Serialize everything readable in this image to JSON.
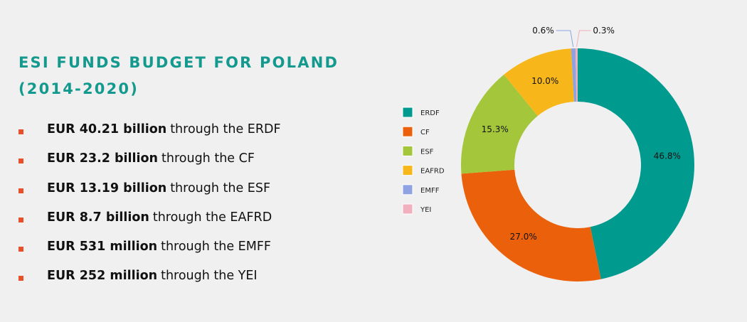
{
  "title_line1": "ESI FUNDS BUDGET FOR POLAND",
  "title_line2": "(2014-2020)",
  "items": [
    {
      "amount": "EUR 40.21 billion",
      "rest": "through the ERDF"
    },
    {
      "amount": "EUR 23.2 billion",
      "rest": "through the CF"
    },
    {
      "amount": "EUR 13.19 billion",
      "rest": "through the ESF"
    },
    {
      "amount": "EUR 8.7 billion",
      "rest": "through the EAFRD"
    },
    {
      "amount": "EUR 531 million",
      "rest": "through the EMFF"
    },
    {
      "amount": "EUR 252 million",
      "rest": "through the YEI"
    }
  ],
  "chart_data": {
    "type": "pie",
    "style": "donut",
    "categories": [
      "ERDF",
      "CF",
      "ESF",
      "EAFRD",
      "EMFF",
      "YEI"
    ],
    "values": [
      46.8,
      27.0,
      15.3,
      10.0,
      0.6,
      0.3
    ],
    "labels": [
      "46.8%",
      "27.0%",
      "15.3%",
      "10.0%",
      "0.6%",
      "0.3%"
    ],
    "colors": [
      "#009a8f",
      "#eb610b",
      "#a3c63a",
      "#f7b71a",
      "#8fa3e3",
      "#f0b0bd"
    ],
    "legend_position": "left"
  }
}
